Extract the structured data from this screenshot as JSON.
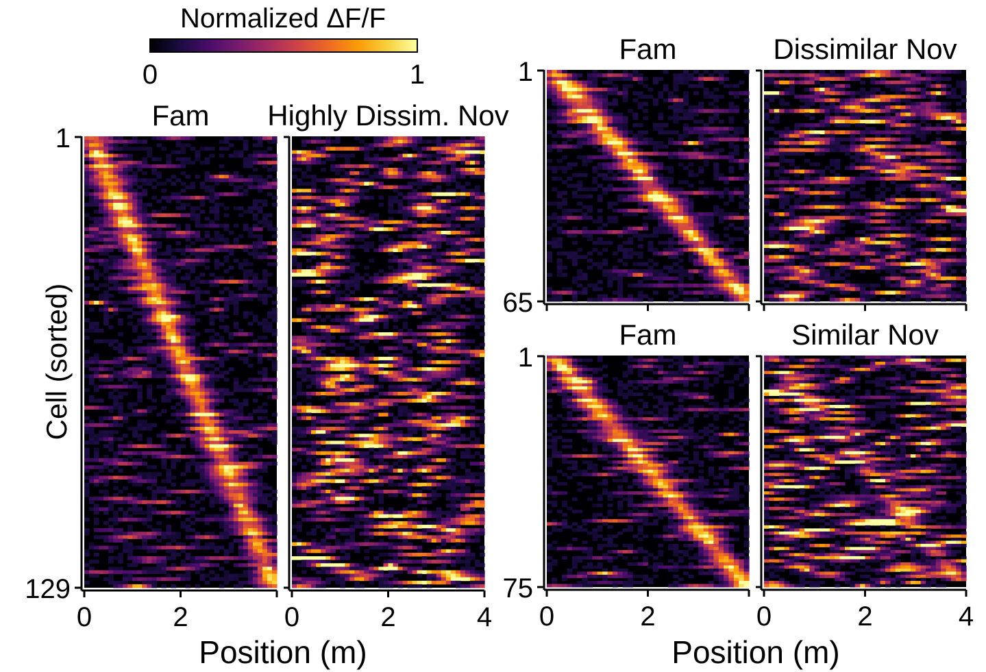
{
  "colorbar": {
    "title": "Normalized ΔF/F",
    "min_label": "0",
    "max_label": "1",
    "range": [
      0,
      1
    ],
    "colormap": [
      "#000004",
      "#1b0c41",
      "#4a0c6b",
      "#781c6d",
      "#a52c60",
      "#cf4446",
      "#ed6925",
      "#fb9b06",
      "#f7d13d",
      "#fcffa4"
    ]
  },
  "axis_labels": {
    "left_y": "Cell (sorted)",
    "left_x": "Position (m)",
    "right_x": "Position (m)"
  },
  "chart_data": [
    {
      "type": "heatmap",
      "title": "Fam",
      "group": "left",
      "n_cells": 129,
      "x_range": [
        0,
        4
      ],
      "x_ticks": [
        "0",
        "2"
      ],
      "y_ticks": [
        "1",
        "129"
      ],
      "diagonal": true,
      "seed": 11
    },
    {
      "type": "heatmap",
      "title": "Highly Dissim. Nov",
      "group": "left",
      "n_cells": 129,
      "x_range": [
        0,
        4
      ],
      "x_ticks": [
        "0",
        "2",
        "4"
      ],
      "y_ticks": [],
      "diagonal": false,
      "seed": 23
    },
    {
      "type": "heatmap",
      "title": "Fam",
      "group": "right-top",
      "n_cells": 65,
      "x_range": [
        0,
        4
      ],
      "x_ticks": [],
      "y_ticks": [
        "1",
        "65"
      ],
      "diagonal": true,
      "seed": 37
    },
    {
      "type": "heatmap",
      "title": "Dissimilar Nov",
      "group": "right-top",
      "n_cells": 65,
      "x_range": [
        0,
        4
      ],
      "x_ticks": [],
      "y_ticks": [],
      "diagonal": false,
      "seed": 41
    },
    {
      "type": "heatmap",
      "title": "Fam",
      "group": "right-bottom",
      "n_cells": 75,
      "x_range": [
        0,
        4
      ],
      "x_ticks": [
        "0",
        "2"
      ],
      "y_ticks": [
        "1",
        "75"
      ],
      "diagonal": true,
      "seed": 53
    },
    {
      "type": "heatmap",
      "title": "Similar Nov",
      "group": "right-bottom",
      "n_cells": 75,
      "x_range": [
        0,
        4
      ],
      "x_ticks": [
        "0",
        "2",
        "4"
      ],
      "y_ticks": [],
      "diagonal": false,
      "partial_diagonal": true,
      "seed": 67
    }
  ]
}
